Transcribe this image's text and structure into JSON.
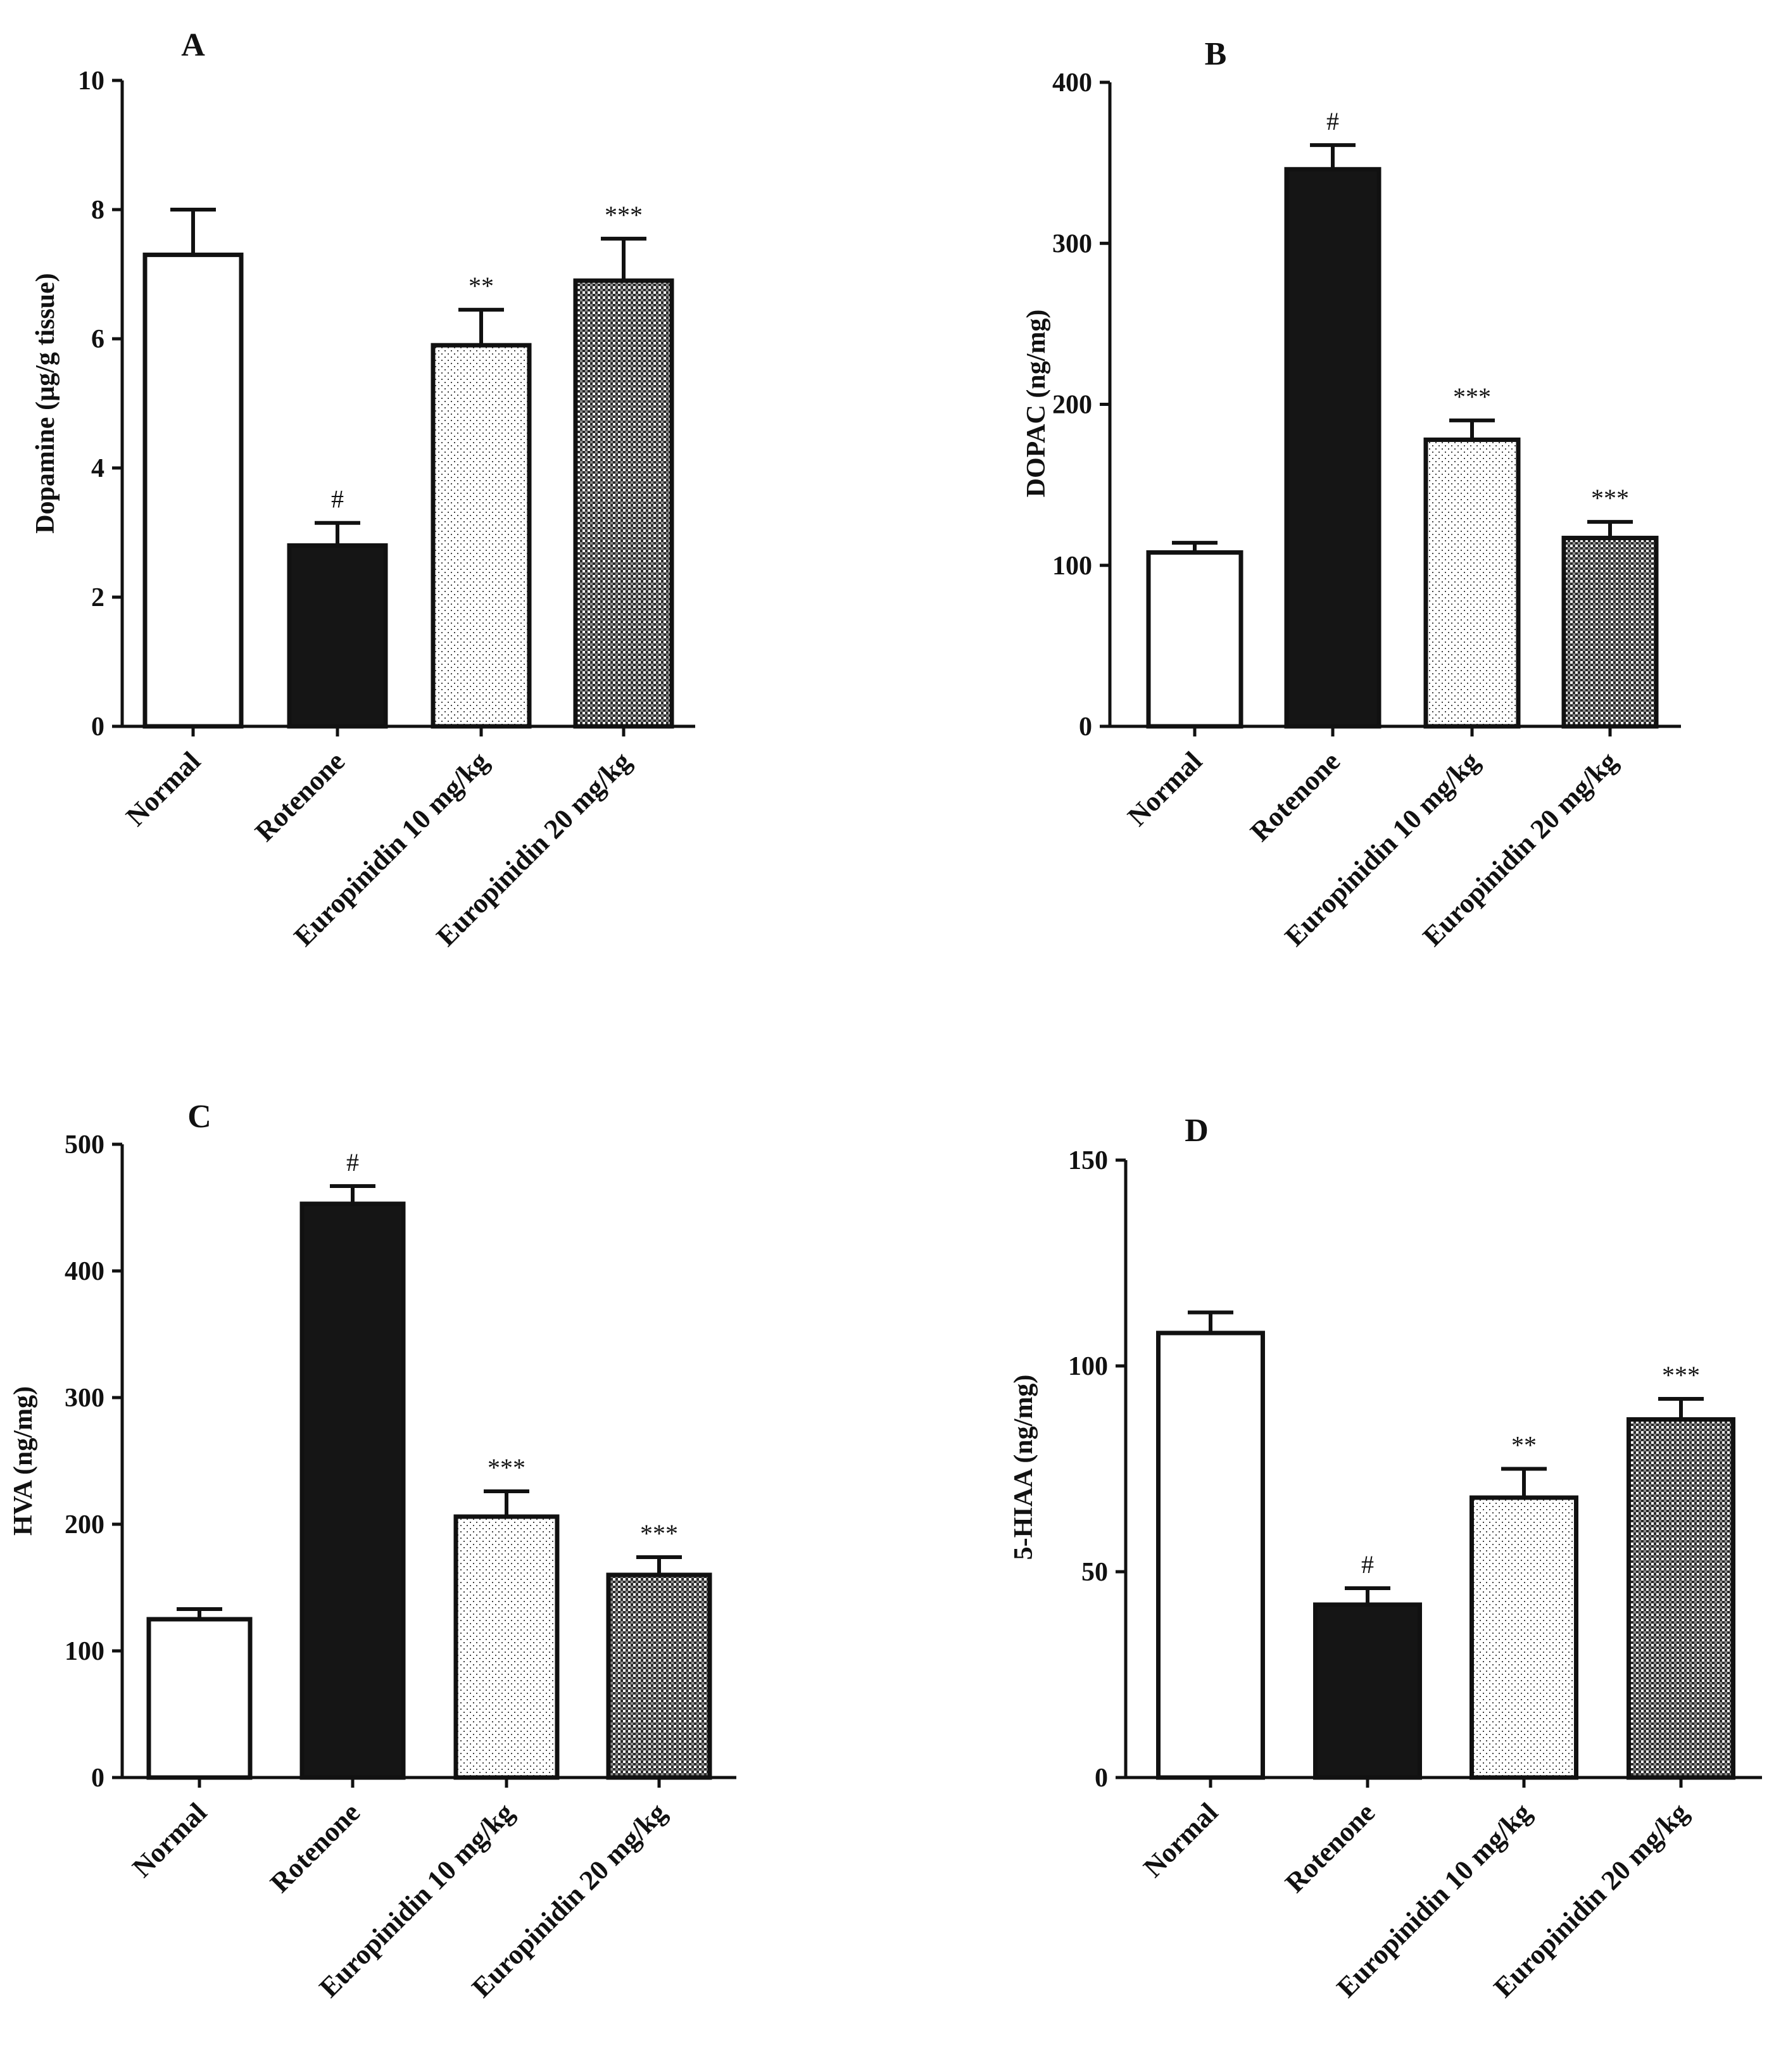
{
  "figure": {
    "colors": {
      "axis": "#111111",
      "bar_outline": "#111111",
      "normal_fill": "#ffffff",
      "rotenone_fill": "#151515",
      "europinidin10_fill": "dotted-light",
      "europinidin20_fill": "checkered-dark"
    }
  },
  "chart_data": [
    {
      "panel": "A",
      "type": "bar",
      "title": "A",
      "xlabel": "",
      "ylabel": "Dopamine (µg/g tissue)",
      "categories": [
        "Normal",
        "Rotenone",
        "Europinidin 10 mg/kg",
        "Europinidin 20 mg/kg"
      ],
      "values": [
        7.3,
        2.8,
        5.9,
        6.9
      ],
      "errors": [
        0.7,
        0.35,
        0.55,
        0.65
      ],
      "significance": [
        "",
        "#",
        "**",
        "***"
      ],
      "ylim": [
        0,
        10
      ],
      "yticks": [
        0,
        2,
        4,
        6,
        8,
        10
      ],
      "grid": false,
      "legend": "none"
    },
    {
      "panel": "B",
      "type": "bar",
      "title": "B",
      "xlabel": "",
      "ylabel": "DOPAC (ng/mg)",
      "categories": [
        "Normal",
        "Rotenone",
        "Europinidin 10 mg/kg",
        "Europinidin 20 mg/kg"
      ],
      "values": [
        108,
        346,
        178,
        117
      ],
      "errors": [
        6,
        15,
        12,
        10
      ],
      "significance": [
        "",
        "#",
        "***",
        "***"
      ],
      "ylim": [
        0,
        400
      ],
      "yticks": [
        0,
        100,
        200,
        300,
        400
      ],
      "grid": false,
      "legend": "none"
    },
    {
      "panel": "C",
      "type": "bar",
      "title": "C",
      "xlabel": "",
      "ylabel": "HVA (ng/mg)",
      "categories": [
        "Normal",
        "Rotenone",
        "Europinidin 10 mg/kg",
        "Europinidin 20 mg/kg"
      ],
      "values": [
        125,
        453,
        206,
        160
      ],
      "errors": [
        8,
        14,
        20,
        14
      ],
      "significance": [
        "",
        "#",
        "***",
        "***"
      ],
      "ylim": [
        0,
        500
      ],
      "yticks": [
        0,
        100,
        200,
        300,
        400,
        500
      ],
      "grid": false,
      "legend": "none"
    },
    {
      "panel": "D",
      "type": "bar",
      "title": "D",
      "xlabel": "",
      "ylabel": "5-HIAA (ng/mg)",
      "categories": [
        "Normal",
        "Rotenone",
        "Europinidin 10 mg/kg",
        "Europinidin 20 mg/kg"
      ],
      "values": [
        108,
        42,
        68,
        87
      ],
      "errors": [
        5,
        4,
        7,
        5
      ],
      "significance": [
        "",
        "#",
        "**",
        "***"
      ],
      "ylim": [
        0,
        150
      ],
      "yticks": [
        0,
        50,
        100,
        150
      ],
      "grid": false,
      "legend": "none"
    }
  ]
}
